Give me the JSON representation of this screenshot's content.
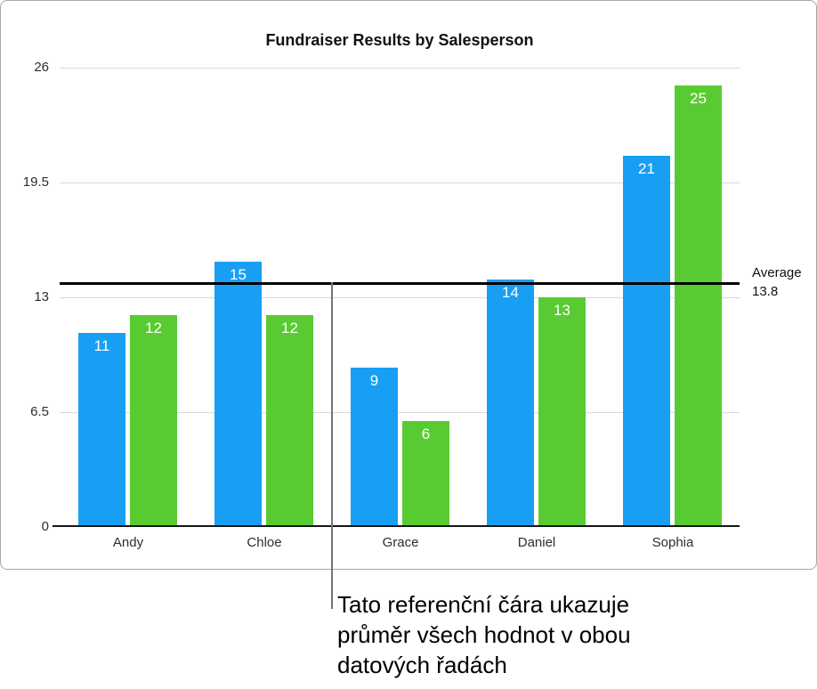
{
  "chart_data": {
    "type": "bar",
    "title": "Fundraiser Results by Salesperson",
    "categories": [
      "Andy",
      "Chloe",
      "Grace",
      "Daniel",
      "Sophia"
    ],
    "series": [
      {
        "color": "#189FF4",
        "values": [
          11,
          15,
          9,
          14,
          21
        ]
      },
      {
        "color": "#59CB32",
        "values": [
          12,
          12,
          6,
          13,
          25
        ]
      }
    ],
    "ylim": [
      0,
      26
    ],
    "yticks": [
      0,
      6.5,
      13,
      19.5,
      26
    ],
    "grid": true,
    "legend": "none",
    "value_labels": "inside-top",
    "reference_line": {
      "value": 13.8,
      "label": "Average",
      "value_label": "13.8"
    }
  },
  "annotation": {
    "callout_text": "Tato referenční čára ukazuje\nprůměr všech hodnot v obou\ndatových řadách"
  },
  "colors": {
    "gridline": "#d9d9d9",
    "axis": "#151515",
    "reference_line": "#000000",
    "frame_border": "#a8a8a8",
    "callout_line": "#757575"
  }
}
